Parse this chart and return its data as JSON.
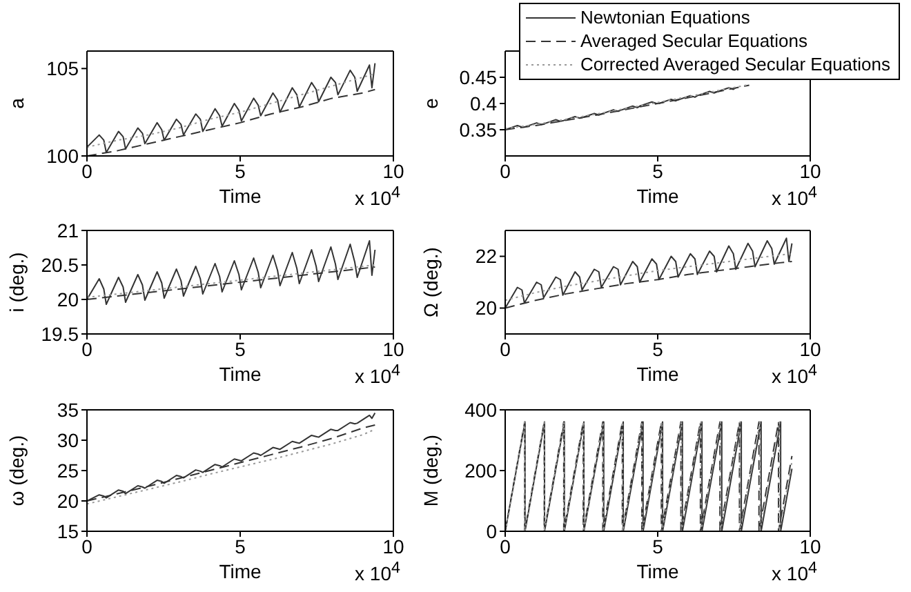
{
  "chart_data": [
    {
      "type": "line",
      "xlabel": "Time",
      "ylabel": "a",
      "xlim": [
        0,
        10
      ],
      "xticks": [
        0,
        5,
        10
      ],
      "ylim": [
        100,
        106
      ],
      "yticks": [
        100,
        105
      ],
      "annotations": [
        "x 10$^{4}$"
      ],
      "series": [
        {
          "color": "#333333",
          "line_style": "solid",
          "x": [
            0,
            0.4,
            0.55,
            0.63,
            1.03,
            1.18,
            1.26,
            1.66,
            1.81,
            1.89,
            2.29,
            2.44,
            2.52,
            2.92,
            3.07,
            3.15,
            3.55,
            3.7,
            3.78,
            4.18,
            4.33,
            4.41,
            4.81,
            4.96,
            5.04,
            5.44,
            5.59,
            5.67,
            6.07,
            6.22,
            6.3,
            6.7,
            6.85,
            6.93,
            7.33,
            7.48,
            7.56,
            7.96,
            8.11,
            8.19,
            8.59,
            8.74,
            8.82,
            9.22,
            9.3,
            9.4
          ],
          "values": [
            100.5,
            101.2,
            100.9,
            100.2,
            101.4,
            101.1,
            100.4,
            101.6,
            101.3,
            100.7,
            101.9,
            101.5,
            100.9,
            102.1,
            101.8,
            101.2,
            102.4,
            102.1,
            101.4,
            102.7,
            102.3,
            101.7,
            103.0,
            102.6,
            102.0,
            103.3,
            102.9,
            102.3,
            103.6,
            103.2,
            102.5,
            103.9,
            103.5,
            102.8,
            104.2,
            103.8,
            103.1,
            104.5,
            104.2,
            103.5,
            104.9,
            104.5,
            103.7,
            105.2,
            103.9,
            105.3
          ]
        },
        {
          "color": "#333333",
          "line_style": "dashed",
          "x": [
            0,
            1,
            2,
            3,
            4,
            5,
            6,
            7,
            8,
            9,
            9.4
          ],
          "values": [
            100,
            100.3,
            100.7,
            101.1,
            101.5,
            101.9,
            102.4,
            102.8,
            103.3,
            103.6,
            103.8
          ]
        },
        {
          "color": "#999999",
          "line_style": "dotted",
          "x": [
            0,
            1,
            2,
            3,
            4,
            5,
            6,
            7,
            8,
            9,
            9.4
          ],
          "values": [
            100.5,
            100.9,
            101.2,
            101.6,
            102.1,
            102.5,
            103,
            103.5,
            104,
            104.5,
            104.7
          ]
        }
      ]
    },
    {
      "type": "line",
      "xlabel": "Time",
      "ylabel": "e",
      "xlim": [
        0,
        10
      ],
      "xticks": [
        0,
        5,
        10
      ],
      "ylim": [
        0.3,
        0.5
      ],
      "yticks": [
        0.35,
        0.4,
        0.45
      ],
      "legend": "top right",
      "annotations": [
        "x 10$^{4}$"
      ],
      "series": [
        {
          "name": "Newtonian Equations",
          "color": "#333333",
          "line_style": "solid",
          "x": [
            0,
            0.4,
            0.55,
            0.63,
            1.03,
            1.18,
            1.26,
            1.66,
            1.81,
            1.89,
            2.29,
            2.44,
            2.52,
            2.92,
            3.07,
            3.15,
            3.55,
            3.7,
            3.78,
            4.18,
            4.33,
            4.41,
            4.81,
            4.96,
            5.04,
            5.44,
            5.59,
            5.67,
            6.07,
            6.22,
            6.3,
            6.7,
            6.85,
            6.93,
            7.33,
            7.48,
            7.56
          ],
          "values": [
            0.35,
            0.358,
            0.355,
            0.355,
            0.363,
            0.36,
            0.361,
            0.369,
            0.366,
            0.367,
            0.375,
            0.372,
            0.373,
            0.381,
            0.378,
            0.38,
            0.388,
            0.385,
            0.387,
            0.395,
            0.392,
            0.395,
            0.403,
            0.4,
            0.4,
            0.408,
            0.405,
            0.407,
            0.415,
            0.412,
            0.415,
            0.423,
            0.42,
            0.422,
            0.43,
            0.427,
            0.43
          ]
        },
        {
          "name": "Averaged Secular Equations",
          "color": "#333333",
          "line_style": "dashed",
          "x": [
            0,
            1,
            2,
            3,
            4,
            5,
            6,
            7,
            8
          ],
          "values": [
            0.35,
            0.358,
            0.368,
            0.378,
            0.389,
            0.4,
            0.411,
            0.423,
            0.435
          ]
        },
        {
          "name": "Corrected Averaged Secular Equations",
          "color": "#999999",
          "line_style": "dotted",
          "x": [
            0,
            1,
            2,
            3,
            4,
            5,
            6,
            7,
            8
          ],
          "values": [
            0.352,
            0.36,
            0.37,
            0.38,
            0.391,
            0.402,
            0.413,
            0.425,
            0.436
          ]
        }
      ]
    },
    {
      "type": "line",
      "xlabel": "Time",
      "ylabel": "i (deg.)",
      "xlim": [
        0,
        10
      ],
      "xticks": [
        0,
        5,
        10
      ],
      "ylim": [
        19.5,
        21
      ],
      "yticks": [
        19.5,
        20,
        20.5,
        21
      ],
      "annotations": [
        "x 10$^{4}$"
      ],
      "series": [
        {
          "color": "#333333",
          "line_style": "solid",
          "x": [
            0,
            0.4,
            0.55,
            0.63,
            1.03,
            1.18,
            1.26,
            1.66,
            1.81,
            1.89,
            2.29,
            2.44,
            2.52,
            2.92,
            3.07,
            3.15,
            3.55,
            3.7,
            3.78,
            4.18,
            4.33,
            4.41,
            4.81,
            4.96,
            5.04,
            5.44,
            5.59,
            5.67,
            6.07,
            6.22,
            6.3,
            6.7,
            6.85,
            6.93,
            7.33,
            7.48,
            7.56,
            7.96,
            8.11,
            8.19,
            8.59,
            8.74,
            8.82,
            9.22,
            9.3,
            9.4
          ],
          "values": [
            20.0,
            20.3,
            20.15,
            19.93,
            20.32,
            20.18,
            19.96,
            20.36,
            20.21,
            19.99,
            20.4,
            20.24,
            20.02,
            20.44,
            20.27,
            20.05,
            20.48,
            20.3,
            20.08,
            20.52,
            20.33,
            20.11,
            20.56,
            20.36,
            20.14,
            20.6,
            20.39,
            20.17,
            20.64,
            20.42,
            20.2,
            20.68,
            20.45,
            20.23,
            20.72,
            20.48,
            20.26,
            20.76,
            20.51,
            20.29,
            20.8,
            20.54,
            20.32,
            20.85,
            20.35,
            20.72
          ]
        },
        {
          "color": "#333333",
          "line_style": "dashed",
          "x": [
            0,
            1,
            2,
            3,
            4,
            5,
            6,
            7,
            8,
            9,
            9.4
          ],
          "values": [
            20,
            20.05,
            20.1,
            20.15,
            20.2,
            20.25,
            20.3,
            20.35,
            20.4,
            20.45,
            20.47
          ]
        },
        {
          "color": "#999999",
          "line_style": "dotted",
          "x": [
            0,
            1,
            2,
            3,
            4,
            5,
            6,
            7,
            8,
            9,
            9.4
          ],
          "values": [
            20.03,
            20.08,
            20.13,
            20.18,
            20.23,
            20.28,
            20.33,
            20.38,
            20.43,
            20.48,
            20.5
          ]
        }
      ]
    },
    {
      "type": "line",
      "xlabel": "Time",
      "ylabel": "Ω (deg.)",
      "xlim": [
        0,
        10
      ],
      "xticks": [
        0,
        5,
        10
      ],
      "ylim": [
        19,
        23
      ],
      "yticks": [
        20,
        22
      ],
      "annotations": [
        "x 10$^{4}$"
      ],
      "series": [
        {
          "color": "#333333",
          "line_style": "solid",
          "x": [
            0,
            0.4,
            0.55,
            0.63,
            1.03,
            1.18,
            1.26,
            1.66,
            1.81,
            1.89,
            2.29,
            2.44,
            2.52,
            2.92,
            3.07,
            3.15,
            3.55,
            3.7,
            3.78,
            4.18,
            4.33,
            4.41,
            4.81,
            4.96,
            5.04,
            5.44,
            5.59,
            5.67,
            6.07,
            6.22,
            6.3,
            6.7,
            6.85,
            6.93,
            7.33,
            7.48,
            7.56,
            7.96,
            8.11,
            8.19,
            8.59,
            8.74,
            8.82,
            9.22,
            9.3,
            9.4
          ],
          "values": [
            20.0,
            20.8,
            20.7,
            20.2,
            21.0,
            20.9,
            20.4,
            21.2,
            21.1,
            20.5,
            21.4,
            21.2,
            20.7,
            21.5,
            21.4,
            20.8,
            21.6,
            21.5,
            20.9,
            21.8,
            21.6,
            21.0,
            21.9,
            21.7,
            21.1,
            22.0,
            21.8,
            21.2,
            22.1,
            21.9,
            21.3,
            22.2,
            22.0,
            21.4,
            22.4,
            22.1,
            21.5,
            22.5,
            22.2,
            21.6,
            22.6,
            22.3,
            21.7,
            22.7,
            21.8,
            22.5
          ]
        },
        {
          "color": "#333333",
          "line_style": "dashed",
          "x": [
            0,
            1,
            2,
            3,
            4,
            5,
            6,
            7,
            8,
            9,
            9.4
          ],
          "values": [
            20.0,
            20.3,
            20.55,
            20.75,
            20.95,
            21.1,
            21.3,
            21.45,
            21.6,
            21.75,
            21.8
          ]
        },
        {
          "color": "#999999",
          "line_style": "dotted",
          "x": [
            0,
            1,
            2,
            3,
            4,
            5,
            6,
            7,
            8,
            9,
            9.4
          ],
          "values": [
            20.3,
            20.6,
            20.85,
            21.05,
            21.25,
            21.45,
            21.6,
            21.75,
            21.9,
            22.05,
            22.1
          ]
        }
      ]
    },
    {
      "type": "line",
      "xlabel": "Time",
      "ylabel": "ω (deg.)",
      "xlim": [
        0,
        10
      ],
      "xticks": [
        0,
        5,
        10
      ],
      "ylim": [
        15,
        35
      ],
      "yticks": [
        15,
        20,
        25,
        30,
        35
      ],
      "annotations": [
        "x 10$^{4}$"
      ],
      "series": [
        {
          "color": "#333333",
          "line_style": "solid",
          "x": [
            0,
            0.4,
            0.55,
            0.63,
            1.03,
            1.18,
            1.26,
            1.66,
            1.81,
            1.89,
            2.29,
            2.44,
            2.52,
            2.92,
            3.07,
            3.15,
            3.55,
            3.7,
            3.78,
            4.18,
            4.33,
            4.41,
            4.81,
            4.96,
            5.04,
            5.44,
            5.59,
            5.67,
            6.07,
            6.22,
            6.3,
            6.7,
            6.85,
            6.93,
            7.33,
            7.48,
            7.56,
            7.96,
            8.11,
            8.19,
            8.59,
            8.74,
            8.82,
            9.22,
            9.3,
            9.4
          ],
          "values": [
            20.0,
            21.0,
            20.8,
            20.5,
            21.8,
            21.6,
            21.2,
            22.5,
            22.3,
            22.1,
            23.4,
            23.2,
            22.9,
            24.2,
            24.0,
            23.8,
            25.1,
            24.9,
            24.7,
            26.0,
            25.8,
            25.6,
            26.9,
            26.7,
            26.6,
            27.9,
            27.7,
            27.5,
            28.8,
            28.6,
            28.5,
            29.8,
            29.6,
            29.5,
            30.8,
            30.6,
            30.5,
            31.8,
            31.6,
            31.6,
            32.9,
            32.7,
            32.8,
            34.1,
            33.6,
            34.5
          ]
        },
        {
          "color": "#333333",
          "line_style": "dashed",
          "x": [
            0,
            1,
            2,
            3,
            4,
            5,
            6,
            7,
            8,
            9,
            9.4
          ],
          "values": [
            20,
            21.2,
            22.4,
            23.7,
            25,
            26.3,
            27.6,
            28.9,
            30.3,
            32.0,
            32.5
          ]
        },
        {
          "color": "#999999",
          "line_style": "dotted",
          "x": [
            0,
            1,
            2,
            3,
            4,
            5,
            6,
            7,
            8,
            9,
            9.4
          ],
          "values": [
            19.5,
            20.7,
            21.9,
            23.1,
            24.4,
            25.6,
            26.8,
            28.1,
            29.4,
            30.9,
            31.8
          ]
        }
      ]
    },
    {
      "type": "line",
      "xlabel": "Time",
      "ylabel": "M (deg.)",
      "xlim": [
        0,
        10
      ],
      "xticks": [
        0,
        5,
        10
      ],
      "ylim": [
        0,
        400
      ],
      "yticks": [
        0,
        200,
        400
      ],
      "annotations": [
        "x 10$^{4}$"
      ],
      "series": [
        {
          "color": "#333333",
          "line_style": "solid",
          "x": [
            0,
            0.65,
            0.65,
            1.29,
            1.29,
            1.94,
            1.94,
            2.58,
            2.58,
            3.23,
            3.23,
            3.87,
            3.87,
            4.52,
            4.52,
            5.16,
            5.16,
            5.81,
            5.81,
            6.45,
            6.45,
            7.1,
            7.1,
            7.74,
            7.74,
            8.39,
            8.39,
            9.03,
            9.03,
            9.4
          ],
          "values": [
            0,
            360,
            0,
            360,
            0,
            360,
            0,
            360,
            0,
            360,
            0,
            360,
            0,
            360,
            0,
            360,
            0,
            360,
            0,
            360,
            0,
            360,
            0,
            360,
            0,
            360,
            0,
            360,
            0,
            206
          ]
        },
        {
          "color": "#333333",
          "line_style": "dashed",
          "x": [
            0,
            0.64,
            0.64,
            1.28,
            1.28,
            1.92,
            1.92,
            2.56,
            2.56,
            3.2,
            3.2,
            3.84,
            3.84,
            4.48,
            4.48,
            5.12,
            5.12,
            5.76,
            5.76,
            6.4,
            6.4,
            7.04,
            7.04,
            7.68,
            7.68,
            8.32,
            8.32,
            8.96,
            8.96,
            9.4
          ],
          "values": [
            0,
            360,
            0,
            360,
            0,
            360,
            0,
            360,
            0,
            360,
            0,
            360,
            0,
            360,
            0,
            360,
            0,
            360,
            0,
            360,
            0,
            360,
            0,
            360,
            0,
            360,
            0,
            360,
            0,
            248
          ]
        },
        {
          "color": "#999999",
          "line_style": "dotted",
          "x": [
            0,
            0.64,
            0.64,
            1.28,
            1.28,
            1.93,
            1.93,
            2.57,
            2.57,
            3.21,
            3.21,
            3.85,
            3.85,
            4.49,
            4.49,
            5.14,
            5.14,
            5.78,
            5.78,
            6.42,
            6.42,
            7.06,
            7.06,
            7.7,
            7.7,
            8.35,
            8.35,
            8.99,
            8.99,
            9.4
          ],
          "values": [
            0,
            360,
            0,
            360,
            0,
            360,
            0,
            360,
            0,
            360,
            0,
            360,
            0,
            360,
            0,
            360,
            0,
            360,
            0,
            360,
            0,
            360,
            0,
            360,
            0,
            360,
            0,
            360,
            0,
            230
          ]
        }
      ]
    }
  ]
}
